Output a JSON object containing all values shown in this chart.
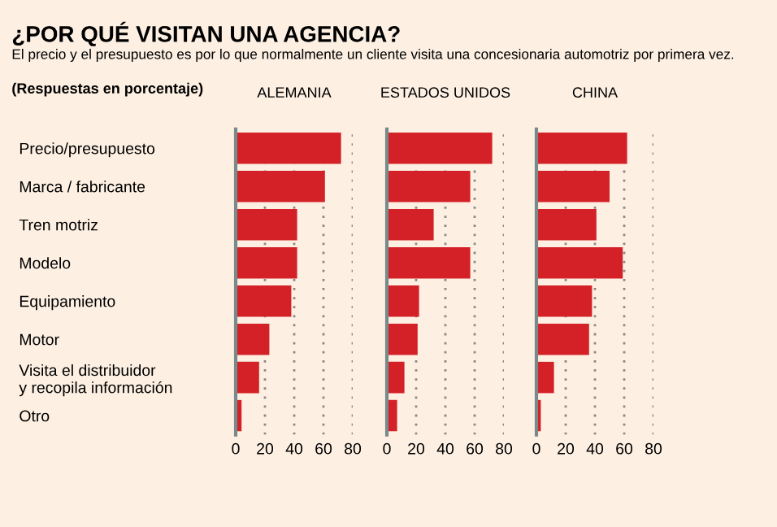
{
  "chart_data": [
    {
      "type": "bar",
      "orientation": "horizontal",
      "title": "ALEMANIA",
      "categories": [
        "Precio/presupuesto",
        "Marca / fabricante",
        "Tren motriz",
        "Modelo",
        "Equipamiento",
        "Motor",
        "Visita el distribuidor\ny recopila información",
        "Otro"
      ],
      "series": [
        {
          "color": "#d42027",
          "values": [
            72,
            61,
            42,
            42,
            38,
            23,
            16,
            4
          ]
        }
      ],
      "xlim": [
        0,
        80
      ],
      "xticks": [
        0,
        20,
        40,
        60,
        80
      ],
      "grid": "x",
      "legend": false,
      "annotations": [
        "¿POR QUÉ VISITAN UNA AGENCIA?",
        "El precio y el presupuesto es por lo que normalmente un cliente visita una concesionaria automotriz por primera vez.",
        "(Respuestas en porcentaje)"
      ]
    },
    {
      "type": "bar",
      "orientation": "horizontal",
      "title": "ESTADOS UNIDOS",
      "categories": [
        null,
        null,
        null,
        null,
        null,
        null,
        null,
        null
      ],
      "series": [
        {
          "color": "#d42027",
          "values": [
            72,
            57,
            32,
            57,
            22,
            21,
            12,
            7
          ]
        }
      ],
      "xlim": [
        0,
        80
      ],
      "xticks": [
        0,
        20,
        40,
        60,
        80
      ],
      "grid": "x",
      "legend": false,
      "tick_labels": "x"
    },
    {
      "type": "bar",
      "orientation": "horizontal",
      "title": "CHINA",
      "categories": [
        null,
        null,
        null,
        null,
        null,
        null,
        null,
        null
      ],
      "series": [
        {
          "color": "#d42027",
          "values": [
            62,
            50,
            41,
            59,
            38,
            36,
            12,
            3
          ]
        }
      ],
      "xlim": [
        0,
        80
      ],
      "xticks": [
        0,
        20,
        40,
        60,
        80
      ],
      "grid": "x",
      "legend": false,
      "tick_labels": "x"
    }
  ]
}
